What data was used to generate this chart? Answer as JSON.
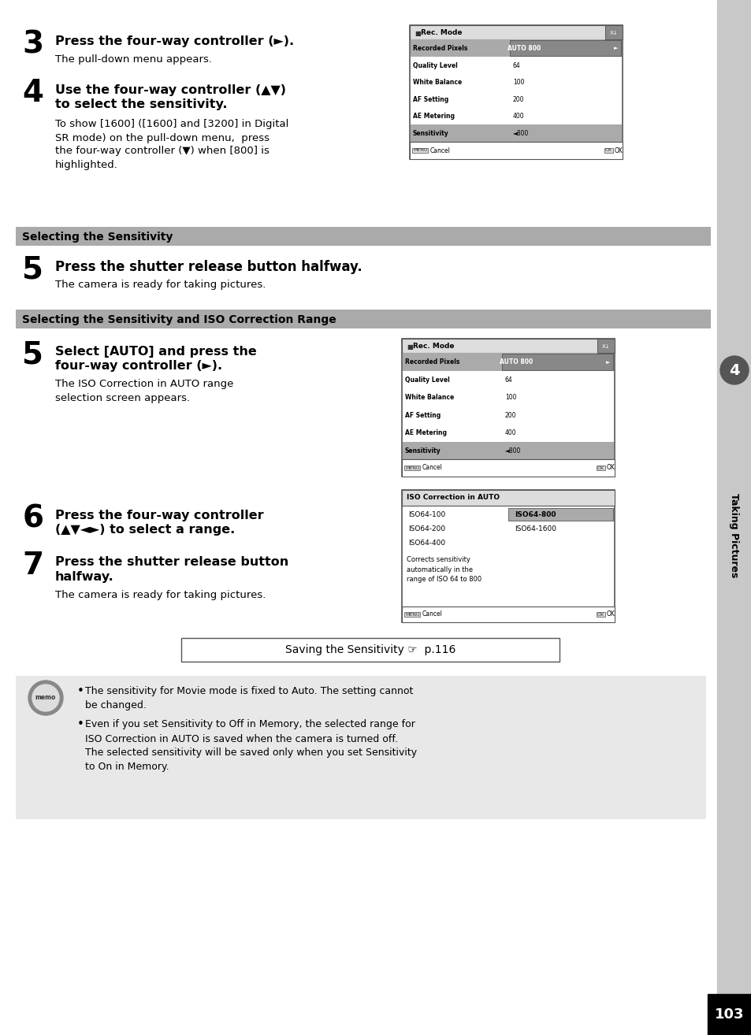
{
  "bg_color": "#ffffff",
  "page_bg": "#ffffff",
  "right_tab_color": "#cccccc",
  "right_tab_dark": "#333333",
  "section_bar_color": "#aaaaaa",
  "section_bar_text_color": "#000000",
  "memo_bg": "#e8e8e8",
  "screen_bg": "#ffffff",
  "screen_border": "#555555",
  "highlight_color": "#aaaaaa",
  "highlight_text": "#000000",
  "step3_num": "3",
  "step3_bold": "Press the four-way controller (►).",
  "step3_body": "The pull-down menu appears.",
  "step4_num": "4",
  "step4_bold_line1": "Use the four-way controller (▲▼)",
  "step4_bold_line2": "to select the sensitivity.",
  "step4_body": "To show [1600] ([1600] and [3200] in Digital\nSR mode) on the pull-down menu,  press\nthe four-way controller (▼) when [800] is\nhighlighted.",
  "section1_title": "Selecting the Sensitivity",
  "step5a_num": "5",
  "step5a_bold": "Press the shutter release button halfway.",
  "step5a_body": "The camera is ready for taking pictures.",
  "section2_title": "Selecting the Sensitivity and ISO Correction Range",
  "step5b_num": "5",
  "step5b_bold_line1": "Select [AUTO] and press the",
  "step5b_bold_line2": "four-way controller (►).",
  "step5b_body": "The ISO Correction in AUTO range\nselection screen appears.",
  "step6_num": "6",
  "step6_bold_line1": "Press the four-way controller",
  "step6_bold_line2": "(▲▼◄►) to select a range.",
  "step7_num": "7",
  "step7_bold_line1": "Press the shutter release button",
  "step7_bold_line2": "halfway.",
  "step7_body": "The camera is ready for taking pictures.",
  "savebox_text": "Saving the Sensitivity ☞  p.116",
  "memo_bullet1_line1": "The sensitivity for Movie mode is fixed to Auto. The setting cannot",
  "memo_bullet1_line2": "be changed.",
  "memo_bullet2_line1": "Even if you set Sensitivity to Off in Memory, the selected range for",
  "memo_bullet2_line2": "ISO Correction in AUTO is saved when the camera is turned off.",
  "memo_bullet2_line3": "The selected sensitivity will be saved only when you set Sensitivity",
  "memo_bullet2_line4": "to On in Memory.",
  "page_number": "103",
  "tab_label": "Taking Pictures",
  "tab_num": "4",
  "menu1_rows": [
    {
      "label": "Recorded Pixels",
      "value": "AUTO 800",
      "highlight": true,
      "arrow": true
    },
    {
      "label": "Quality Level",
      "value": "64",
      "highlight": false
    },
    {
      "label": "White Balance",
      "value": "100",
      "highlight": false
    },
    {
      "label": "AF Setting",
      "value": "200",
      "highlight": false
    },
    {
      "label": "AE Metering",
      "value": "400",
      "highlight": false
    },
    {
      "label": "Sensitivity",
      "value": "◄800",
      "highlight": true,
      "arrow": false
    }
  ],
  "menu2_rows": [
    {
      "label": "Recorded Pixels",
      "value": "AUTO 800",
      "highlight": true,
      "arrow": true
    },
    {
      "label": "Quality Level",
      "value": "64",
      "highlight": false
    },
    {
      "label": "White Balance",
      "value": "100",
      "highlight": false
    },
    {
      "label": "AF Setting",
      "value": "200",
      "highlight": false
    },
    {
      "label": "AE Metering",
      "value": "400",
      "highlight": false
    },
    {
      "label": "Sensitivity",
      "value": "◄800",
      "highlight": true,
      "arrow": false
    }
  ],
  "iso_rows_left": [
    "ISO64-100",
    "ISO64-200",
    "ISO64-400"
  ],
  "iso_rows_right": [
    "ISO64-800",
    "ISO64-1600",
    ""
  ],
  "iso_note": "Corrects sensitivity\nautomatically in the\nrange of ISO 64 to 800"
}
